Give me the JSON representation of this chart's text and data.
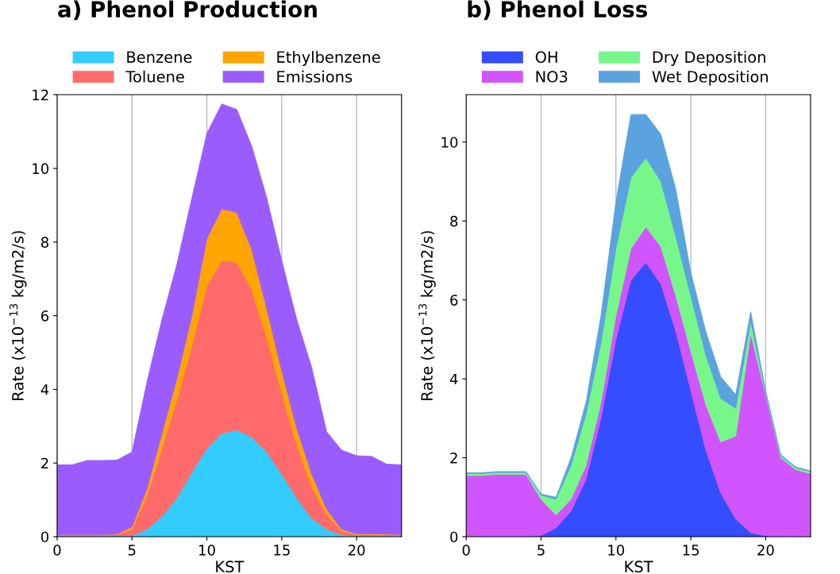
{
  "chart_data": [
    {
      "type": "area",
      "stacked": true,
      "title": "a) Phenol Production",
      "xlabel": "KST",
      "ylabel": "Rate (x10$^{−13}$ kg/m2/s)",
      "x": [
        0,
        1,
        2,
        3,
        4,
        5,
        6,
        7,
        8,
        9,
        10,
        11,
        12,
        13,
        14,
        15,
        16,
        17,
        18,
        19,
        20,
        21,
        22,
        23
      ],
      "xlim": [
        0,
        23
      ],
      "xticks": [
        0,
        5,
        10,
        15,
        20
      ],
      "ylim": [
        0,
        12
      ],
      "yticks": [
        0,
        2,
        4,
        6,
        8,
        10,
        12
      ],
      "grid": "x",
      "legend": "top",
      "series": [
        {
          "name": "Benzene",
          "color": "#33ccff",
          "values": [
            0.02,
            0.02,
            0.02,
            0.02,
            0.02,
            0.03,
            0.2,
            0.55,
            1.05,
            1.75,
            2.4,
            2.8,
            2.9,
            2.7,
            2.3,
            1.7,
            1.05,
            0.5,
            0.2,
            0.05,
            0.02,
            0.02,
            0.02,
            0.02
          ]
        },
        {
          "name": "Toluene",
          "color": "#ff6b6b",
          "values": [
            0.03,
            0.03,
            0.03,
            0.03,
            0.03,
            0.17,
            0.9,
            1.85,
            2.65,
            3.45,
            4.4,
            4.7,
            4.55,
            4.0,
            3.1,
            2.2,
            1.45,
            0.85,
            0.4,
            0.1,
            0.04,
            0.03,
            0.03,
            0.03
          ]
        },
        {
          "name": "Ethylbenzene",
          "color": "#ffa500",
          "values": [
            0.01,
            0.01,
            0.01,
            0.01,
            0.02,
            0.07,
            0.2,
            0.4,
            0.6,
            0.8,
            1.3,
            1.4,
            1.35,
            1.1,
            0.8,
            0.6,
            0.45,
            0.35,
            0.15,
            0.05,
            0.02,
            0.03,
            0.02,
            0.01
          ]
        },
        {
          "name": "Emissions",
          "color": "#9b5cff",
          "values": [
            1.89,
            1.89,
            2.01,
            2.01,
            2.01,
            2.03,
            2.9,
            3.1,
            3.1,
            3.2,
            2.85,
            2.85,
            2.8,
            2.8,
            3.0,
            3.0,
            2.95,
            2.9,
            2.1,
            2.15,
            2.12,
            2.1,
            1.9,
            1.89
          ]
        }
      ]
    },
    {
      "type": "area",
      "stacked": true,
      "title": "b) Phenol Loss",
      "xlabel": "KST",
      "ylabel": "Rate (x10$^{−13}$ kg/m2/s)",
      "x": [
        0,
        1,
        2,
        3,
        4,
        5,
        6,
        7,
        8,
        9,
        10,
        11,
        12,
        13,
        14,
        15,
        16,
        17,
        18,
        19,
        20,
        21,
        22,
        23
      ],
      "xlim": [
        0,
        23
      ],
      "xticks": [
        0,
        5,
        10,
        15,
        20
      ],
      "ylim": [
        0,
        11.2
      ],
      "yticks": [
        0,
        2,
        4,
        6,
        8,
        10
      ],
      "grid": "x",
      "legend": "top",
      "series": [
        {
          "name": "OH",
          "color": "#334dff",
          "values": [
            0,
            0,
            0,
            0,
            0,
            0.03,
            0.22,
            0.65,
            1.45,
            3.0,
            5.0,
            6.5,
            6.95,
            6.4,
            5.2,
            3.7,
            2.2,
            1.1,
            0.45,
            0.1,
            0.02,
            0,
            0,
            0
          ]
        },
        {
          "name": "NO3",
          "color": "#d155ff",
          "values": [
            1.55,
            1.55,
            1.58,
            1.58,
            1.58,
            0.92,
            0.33,
            0.3,
            0.35,
            0.4,
            0.6,
            0.8,
            0.9,
            0.95,
            0.9,
            1.0,
            1.15,
            1.3,
            2.1,
            5.05,
            3.58,
            2.0,
            1.7,
            1.6
          ]
        },
        {
          "name": "Dry Deposition",
          "color": "#77f78a",
          "values": [
            0.05,
            0.05,
            0.05,
            0.05,
            0.05,
            0.1,
            0.4,
            0.85,
            1.3,
            1.5,
            1.7,
            1.8,
            1.75,
            1.65,
            1.5,
            1.4,
            1.25,
            1.1,
            0.7,
            0.3,
            0.05,
            0.05,
            0.05,
            0.05
          ]
        },
        {
          "name": "Wet Deposition",
          "color": "#5aa3de",
          "values": [
            0.02,
            0.02,
            0.02,
            0.02,
            0.02,
            0.03,
            0.05,
            0.2,
            0.3,
            0.7,
            1.2,
            1.6,
            1.1,
            1.2,
            1.2,
            0.6,
            0.6,
            0.55,
            0.35,
            0.25,
            0.05,
            0.03,
            0.02,
            0.02
          ]
        }
      ]
    }
  ]
}
